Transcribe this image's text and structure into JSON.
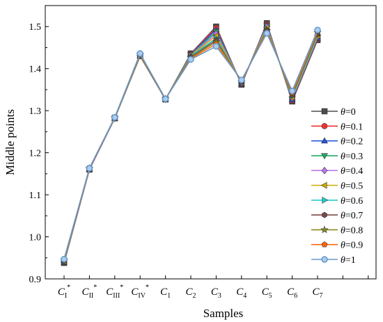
{
  "chart_data": {
    "type": "line",
    "title": "",
    "xlabel": "Samples",
    "ylabel": "Middle points",
    "ylim": [
      0.9,
      1.55
    ],
    "yticks": [
      "0.9",
      "1.0",
      "1.1",
      "1.2",
      "1.3",
      "1.4",
      "1.5"
    ],
    "grid": false,
    "legend_position": "right",
    "categories": [
      {
        "base": "C",
        "sub": "I",
        "sup": "*"
      },
      {
        "base": "C",
        "sub": "II",
        "sup": "*"
      },
      {
        "base": "C",
        "sub": "III",
        "sup": "*"
      },
      {
        "base": "C",
        "sub": "IV",
        "sup": "*"
      },
      {
        "base": "C",
        "sub": "1",
        "sup": ""
      },
      {
        "base": "C",
        "sub": "2",
        "sup": ""
      },
      {
        "base": "C",
        "sub": "3",
        "sup": ""
      },
      {
        "base": "C",
        "sub": "4",
        "sup": ""
      },
      {
        "base": "C",
        "sub": "5",
        "sup": ""
      },
      {
        "base": "C",
        "sub": "6",
        "sup": ""
      },
      {
        "base": "C",
        "sub": "7",
        "sup": ""
      }
    ],
    "legend_symbol": "θ",
    "series": [
      {
        "name": "=0",
        "color": "#4d4d4d",
        "marker": "square",
        "values": [
          0.938,
          1.16,
          1.282,
          1.43,
          1.327,
          1.436,
          1.5,
          1.362,
          1.508,
          1.322,
          1.468
        ]
      },
      {
        "name": "=0.1",
        "color": "#ee3333",
        "marker": "circle",
        "values": [
          0.939,
          1.16,
          1.282,
          1.43,
          1.327,
          1.435,
          1.497,
          1.363,
          1.506,
          1.324,
          1.47
        ]
      },
      {
        "name": "=0.2",
        "color": "#2255dd",
        "marker": "triangle-up",
        "values": [
          0.94,
          1.161,
          1.282,
          1.431,
          1.327,
          1.434,
          1.493,
          1.364,
          1.504,
          1.326,
          1.472
        ]
      },
      {
        "name": "=0.3",
        "color": "#22aa66",
        "marker": "triangle-down",
        "values": [
          0.941,
          1.161,
          1.282,
          1.431,
          1.327,
          1.433,
          1.488,
          1.365,
          1.502,
          1.328,
          1.474
        ]
      },
      {
        "name": "=0.4",
        "color": "#bb77ee",
        "marker": "diamond",
        "values": [
          0.942,
          1.161,
          1.282,
          1.432,
          1.327,
          1.432,
          1.483,
          1.366,
          1.5,
          1.33,
          1.476
        ]
      },
      {
        "name": "=0.5",
        "color": "#ccaa00",
        "marker": "triangle-left",
        "values": [
          0.942,
          1.162,
          1.283,
          1.432,
          1.327,
          1.431,
          1.478,
          1.367,
          1.497,
          1.332,
          1.478
        ]
      },
      {
        "name": "=0.6",
        "color": "#22cccc",
        "marker": "triangle-right",
        "values": [
          0.943,
          1.162,
          1.283,
          1.433,
          1.327,
          1.43,
          1.472,
          1.368,
          1.494,
          1.335,
          1.48
        ]
      },
      {
        "name": "=0.7",
        "color": "#7a4a4a",
        "marker": "hexagon",
        "values": [
          0.944,
          1.162,
          1.283,
          1.433,
          1.327,
          1.428,
          1.468,
          1.369,
          1.492,
          1.337,
          1.483
        ]
      },
      {
        "name": "=0.8",
        "color": "#8a8a22",
        "marker": "star",
        "values": [
          0.945,
          1.163,
          1.283,
          1.434,
          1.328,
          1.426,
          1.464,
          1.37,
          1.49,
          1.34,
          1.486
        ]
      },
      {
        "name": "=0.9",
        "color": "#ff6611",
        "marker": "pentagon",
        "values": [
          0.946,
          1.163,
          1.284,
          1.435,
          1.328,
          1.424,
          1.459,
          1.371,
          1.487,
          1.343,
          1.489
        ]
      },
      {
        "name": "=1",
        "color": "#6699cc",
        "marker": "circle-hollow",
        "values": [
          0.947,
          1.163,
          1.284,
          1.436,
          1.328,
          1.422,
          1.453,
          1.373,
          1.484,
          1.347,
          1.492
        ]
      }
    ]
  }
}
